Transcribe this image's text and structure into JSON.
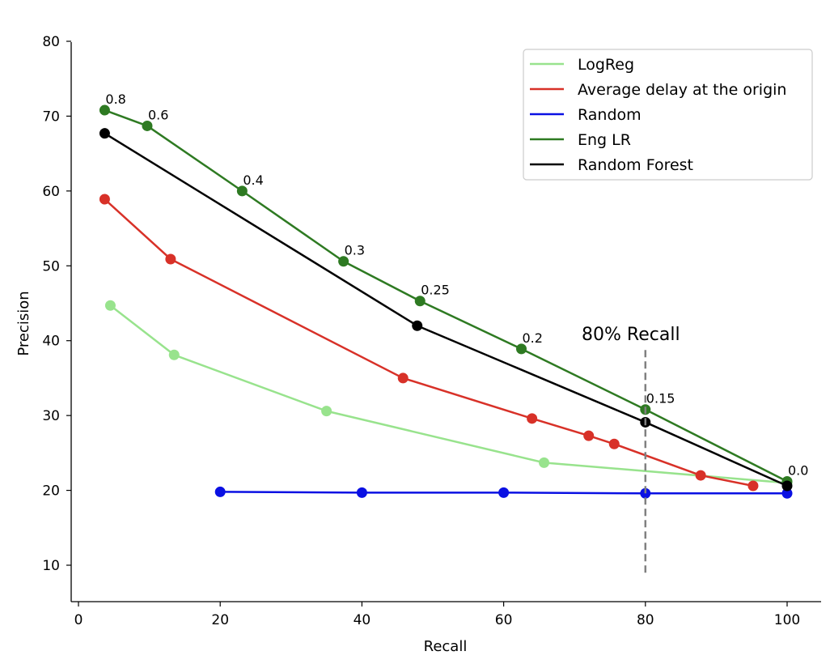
{
  "chart_data": {
    "type": "line",
    "xlabel": "Recall",
    "ylabel": "Precision",
    "xlim": [
      -1,
      104
    ],
    "ylim": [
      5,
      80
    ],
    "xticks": [
      0,
      20,
      40,
      60,
      80,
      100
    ],
    "yticks": [
      10,
      20,
      30,
      40,
      50,
      60,
      70,
      80
    ],
    "legend_position": "top-right",
    "series": [
      {
        "name": "LogReg",
        "color": "#98e38d",
        "x": [
          4.5,
          13.5,
          35,
          65.7,
          100
        ],
        "y": [
          44.7,
          38.1,
          30.6,
          23.7,
          21.0
        ]
      },
      {
        "name": "Average delay at the origin",
        "color": "#d83128",
        "x": [
          3.7,
          13,
          45.8,
          64,
          72,
          75.6,
          87.8,
          95.2
        ],
        "y": [
          58.9,
          50.9,
          35.0,
          29.6,
          27.3,
          26.2,
          22.0,
          20.6
        ]
      },
      {
        "name": "Random",
        "color": "#0a10e3",
        "x": [
          20,
          40,
          60,
          80,
          100
        ],
        "y": [
          19.8,
          19.7,
          19.7,
          19.6,
          19.6
        ]
      },
      {
        "name": "Eng LR",
        "color": "#2e7a22",
        "x": [
          3.7,
          9.7,
          23.1,
          37.4,
          48.2,
          62.5,
          80,
          100
        ],
        "y": [
          70.8,
          68.7,
          60.0,
          50.6,
          45.3,
          38.9,
          30.8,
          21.2
        ],
        "point_labels": [
          "0.8",
          "0.6",
          "0.4",
          "0.3",
          "0.25",
          "0.2",
          "0.15",
          "0.0"
        ]
      },
      {
        "name": "Random Forest",
        "color": "#000000",
        "x": [
          3.7,
          47.8,
          80,
          100
        ],
        "y": [
          67.7,
          42.0,
          29.1,
          20.6
        ]
      }
    ],
    "annotations": [
      {
        "text": "80% Recall",
        "x": 80,
        "y_from": 9,
        "y_to": 38.8,
        "style": "dashed",
        "color": "#808080"
      }
    ]
  }
}
